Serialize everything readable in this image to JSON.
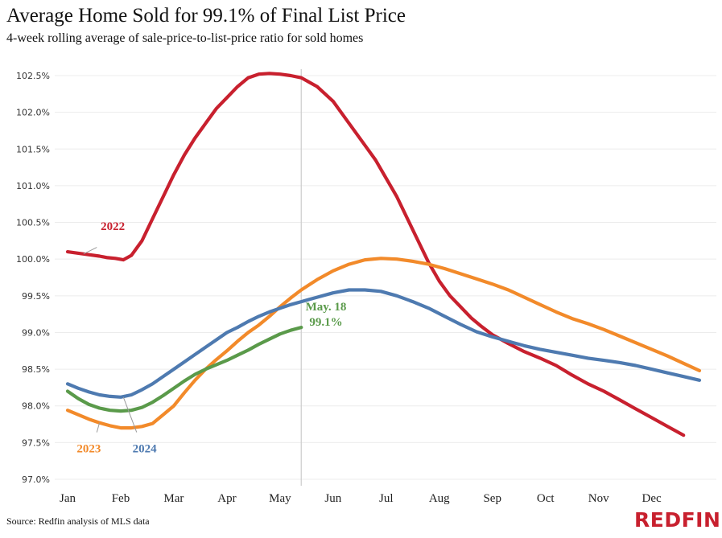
{
  "title": "Average Home Sold for 99.1% of Final List Price",
  "subtitle": "4-week rolling average of sale-price-to-list-price ratio for sold homes",
  "source": "Source: Redfin analysis of MLS data",
  "logo": "REDFIN",
  "chart_data": {
    "type": "line",
    "title": "Average Home Sold for 99.1% of Final List Price",
    "subtitle": "4-week rolling average of sale-price-to-list-price ratio for sold homes",
    "xlabel": "",
    "ylabel": "",
    "x_tick_labels": [
      "Jan",
      "Feb",
      "Mar",
      "Apr",
      "May",
      "Jun",
      "Jul",
      "Aug",
      "Sep",
      "Oct",
      "Nov",
      "Dec"
    ],
    "y_tick_labels": [
      "97.0%",
      "97.5%",
      "98.0%",
      "98.5%",
      "99.0%",
      "99.5%",
      "100.0%",
      "100.5%",
      "101.0%",
      "101.5%",
      "102.0%",
      "102.5%"
    ],
    "ylim": [
      97.0,
      102.8
    ],
    "xlim": [
      1,
      12.9
    ],
    "grid": true,
    "legend": "inline labels",
    "vertical_marker_x": 5.4,
    "annotation": {
      "lines": [
        "May. 18",
        "99.1%"
      ],
      "color": "#5a9a4a"
    },
    "series": [
      {
        "name": "2022",
        "color": "#c8202e",
        "label_x": 1.85,
        "label_y": 100.45,
        "x": [
          1.0,
          1.3,
          1.6,
          1.75,
          1.9,
          2.05,
          2.2,
          2.4,
          2.6,
          2.8,
          3.0,
          3.2,
          3.4,
          3.6,
          3.8,
          4.0,
          4.2,
          4.4,
          4.6,
          4.8,
          5.0,
          5.2,
          5.4,
          5.7,
          6.0,
          6.3,
          6.6,
          6.8,
          7.0,
          7.2,
          7.4,
          7.6,
          7.8,
          8.0,
          8.2,
          8.4,
          8.6,
          8.8,
          9.0,
          9.3,
          9.6,
          9.9,
          10.2,
          10.5,
          10.8,
          11.1,
          11.4,
          11.7,
          12.0,
          12.3,
          12.6
        ],
        "y": [
          100.1,
          100.07,
          100.04,
          100.02,
          100.01,
          99.99,
          100.05,
          100.25,
          100.55,
          100.85,
          101.15,
          101.42,
          101.65,
          101.85,
          102.05,
          102.2,
          102.35,
          102.47,
          102.52,
          102.53,
          102.52,
          102.5,
          102.47,
          102.35,
          102.15,
          101.85,
          101.55,
          101.35,
          101.1,
          100.85,
          100.55,
          100.25,
          99.95,
          99.7,
          99.5,
          99.35,
          99.2,
          99.08,
          98.97,
          98.85,
          98.74,
          98.65,
          98.55,
          98.42,
          98.3,
          98.2,
          98.08,
          97.96,
          97.84,
          97.72,
          97.6
        ]
      },
      {
        "name": "2023",
        "color": "#f28a2a",
        "label_x": 1.4,
        "label_y": 97.42,
        "x": [
          1.0,
          1.2,
          1.4,
          1.6,
          1.8,
          2.0,
          2.2,
          2.4,
          2.6,
          2.8,
          3.0,
          3.2,
          3.4,
          3.6,
          3.8,
          4.0,
          4.2,
          4.4,
          4.6,
          4.8,
          5.0,
          5.2,
          5.4,
          5.7,
          6.0,
          6.3,
          6.6,
          6.9,
          7.2,
          7.5,
          7.8,
          8.1,
          8.4,
          8.7,
          9.0,
          9.3,
          9.6,
          9.9,
          10.2,
          10.5,
          10.8,
          11.1,
          11.4,
          11.7,
          12.0,
          12.3,
          12.6,
          12.9
        ],
        "y": [
          97.94,
          97.88,
          97.82,
          97.77,
          97.73,
          97.7,
          97.7,
          97.72,
          97.76,
          97.88,
          98.0,
          98.18,
          98.35,
          98.5,
          98.63,
          98.75,
          98.88,
          99.0,
          99.1,
          99.22,
          99.35,
          99.47,
          99.58,
          99.72,
          99.84,
          99.93,
          99.99,
          100.01,
          100.0,
          99.97,
          99.93,
          99.87,
          99.8,
          99.73,
          99.66,
          99.58,
          99.48,
          99.38,
          99.28,
          99.19,
          99.12,
          99.04,
          98.95,
          98.86,
          98.77,
          98.68,
          98.58,
          98.48
        ]
      },
      {
        "name": "2024",
        "color": "#4e7ab0",
        "label_x": 2.45,
        "label_y": 97.42,
        "x": [
          1.0,
          1.2,
          1.4,
          1.6,
          1.8,
          2.0,
          2.2,
          2.4,
          2.6,
          2.8,
          3.0,
          3.2,
          3.4,
          3.6,
          3.8,
          4.0,
          4.2,
          4.4,
          4.6,
          4.8,
          5.0,
          5.2,
          5.4,
          5.7,
          6.0,
          6.3,
          6.6,
          6.9,
          7.2,
          7.5,
          7.8,
          8.1,
          8.4,
          8.7,
          9.0,
          9.3,
          9.6,
          9.9,
          10.2,
          10.5,
          10.8,
          11.1,
          11.4,
          11.7,
          12.0,
          12.3,
          12.6,
          12.9
        ],
        "y": [
          98.3,
          98.24,
          98.19,
          98.15,
          98.13,
          98.12,
          98.15,
          98.22,
          98.3,
          98.4,
          98.5,
          98.6,
          98.7,
          98.8,
          98.9,
          99.0,
          99.07,
          99.15,
          99.22,
          99.28,
          99.33,
          99.38,
          99.42,
          99.48,
          99.54,
          99.58,
          99.58,
          99.56,
          99.5,
          99.42,
          99.33,
          99.22,
          99.11,
          99.01,
          98.94,
          98.88,
          98.82,
          98.77,
          98.73,
          98.69,
          98.65,
          98.62,
          98.59,
          98.55,
          98.5,
          98.45,
          98.4,
          98.35
        ]
      },
      {
        "name": "",
        "color": "#5a9a4a",
        "x": [
          1.0,
          1.2,
          1.4,
          1.6,
          1.8,
          2.0,
          2.2,
          2.4,
          2.6,
          2.8,
          3.0,
          3.2,
          3.4,
          3.6,
          3.8,
          4.0,
          4.2,
          4.4,
          4.6,
          4.8,
          5.0,
          5.2,
          5.4
        ],
        "y": [
          98.2,
          98.1,
          98.02,
          97.97,
          97.94,
          97.93,
          97.94,
          97.98,
          98.05,
          98.14,
          98.24,
          98.34,
          98.43,
          98.5,
          98.56,
          98.62,
          98.69,
          98.76,
          98.84,
          98.91,
          98.98,
          99.03,
          99.07
        ]
      }
    ]
  }
}
